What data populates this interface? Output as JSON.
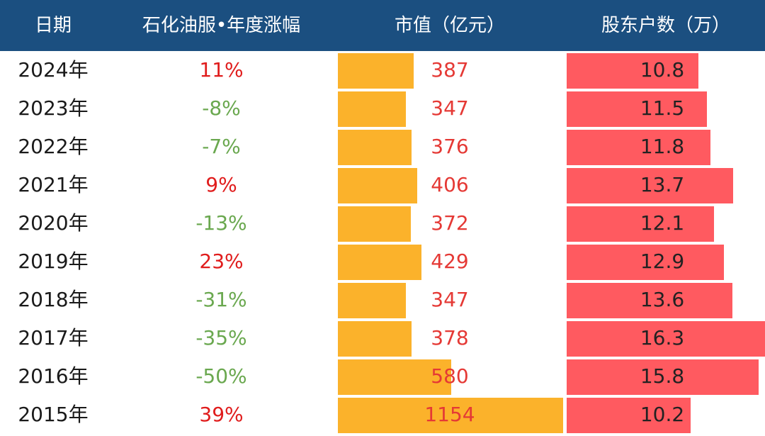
{
  "header": {
    "date": "日期",
    "change": "石化油服•年度涨幅",
    "market_cap": "市值（亿元）",
    "shareholders": "股东户数（万）"
  },
  "colors": {
    "header_bg": "#1b4f80",
    "positive": "#e01c1c",
    "negative": "#6aa84f",
    "market_cap_bar": "#fbb22b",
    "shareholder_bar": "#ff5a60",
    "market_cap_text": "#e53935"
  },
  "chart_data": {
    "type": "table",
    "columns": [
      "日期",
      "石化油服•年度涨幅",
      "市值（亿元）",
      "股东户数（万）"
    ],
    "rows": [
      {
        "date": "2024年",
        "change": "11%",
        "market_cap": "387",
        "shareholders": "10.8"
      },
      {
        "date": "2023年",
        "change": "-8%",
        "market_cap": "347",
        "shareholders": "11.5"
      },
      {
        "date": "2022年",
        "change": "-7%",
        "market_cap": "376",
        "shareholders": "11.8"
      },
      {
        "date": "2021年",
        "change": "9%",
        "market_cap": "406",
        "shareholders": "13.7"
      },
      {
        "date": "2020年",
        "change": "-13%",
        "market_cap": "372",
        "shareholders": "12.1"
      },
      {
        "date": "2019年",
        "change": "23%",
        "market_cap": "429",
        "shareholders": "12.9"
      },
      {
        "date": "2018年",
        "change": "-31%",
        "market_cap": "347",
        "shareholders": "13.6"
      },
      {
        "date": "2017年",
        "change": "-35%",
        "market_cap": "378",
        "shareholders": "16.3"
      },
      {
        "date": "2016年",
        "change": "-50%",
        "market_cap": "580",
        "shareholders": "15.8"
      },
      {
        "date": "2015年",
        "change": "39%",
        "market_cap": "1154",
        "shareholders": "10.2"
      }
    ]
  }
}
